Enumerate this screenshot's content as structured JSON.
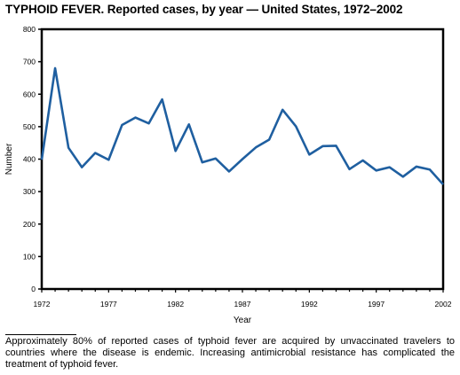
{
  "heading": {
    "bold": "TYPHOID FEVER.",
    "rest": " Reported cases, by year — United States, 1972–2002"
  },
  "footnote": "Approximately 80% of reported cases of typhoid fever are acquired by unvaccinated travelers to countries where the disease is endemic. Increasing antimicrobial resistance has complicated the treatment of typhoid fever.",
  "chart_data": {
    "type": "line",
    "xlabel": "Year",
    "ylabel": "Number",
    "xlim": [
      1972,
      2002
    ],
    "ylim": [
      0,
      800
    ],
    "x_ticks": [
      1972,
      1977,
      1982,
      1987,
      1992,
      1997,
      2002
    ],
    "y_ticks": [
      0,
      100,
      200,
      300,
      400,
      500,
      600,
      700,
      800
    ],
    "line_color": "#1f5fa0",
    "grid": false,
    "series": [
      {
        "x": [
          1972,
          1973,
          1974,
          1975,
          1976,
          1977,
          1978,
          1979,
          1980,
          1981,
          1982,
          1983,
          1984,
          1985,
          1986,
          1987,
          1988,
          1989,
          1990,
          1991,
          1992,
          1993,
          1994,
          1995,
          1996,
          1997,
          1998,
          1999,
          2000,
          2001,
          2002
        ],
        "values": [
          398,
          680,
          435,
          375,
          419,
          398,
          505,
          528,
          510,
          584,
          425,
          507,
          390,
          402,
          362,
          400,
          436,
          460,
          552,
          501,
          414,
          440,
          441,
          369,
          396,
          365,
          375,
          346,
          377,
          368,
          322
        ]
      }
    ]
  }
}
